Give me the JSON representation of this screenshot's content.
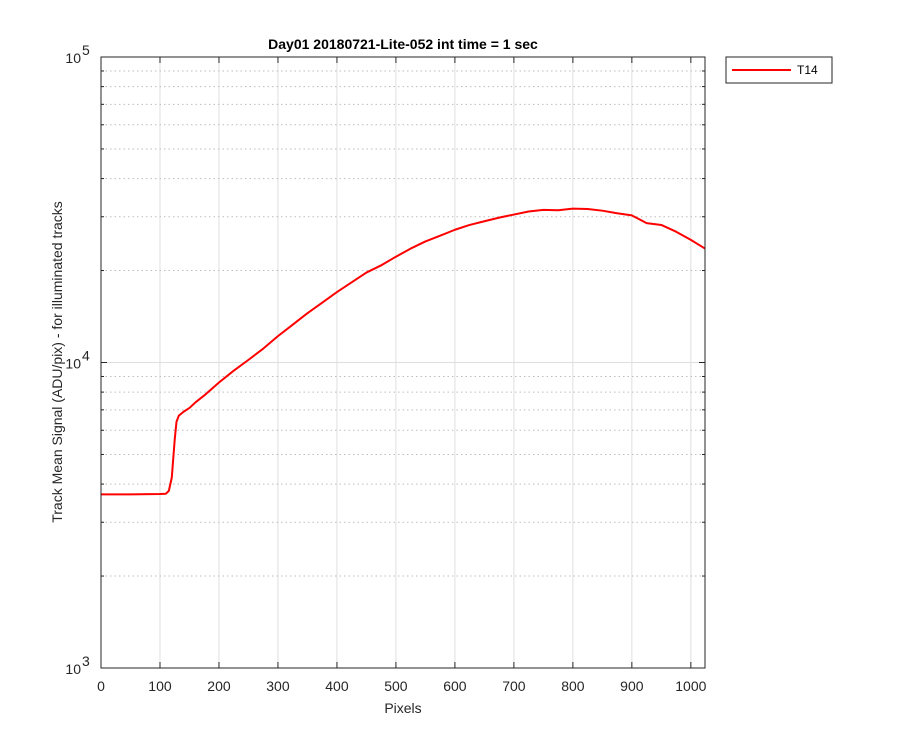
{
  "chart_data": {
    "type": "line",
    "title": "Day01 20180721-Lite-052 int time = 1 sec",
    "xlabel": "Pixels",
    "ylabel": "Track Mean Signal (ADU/pix) - for illuminated tracks",
    "xlim": [
      0,
      1024
    ],
    "ylim": [
      1000,
      100000
    ],
    "yscale": "log",
    "grid": true,
    "minor_grid": true,
    "legend_position": "outside-top-right",
    "x_ticks": [
      0,
      100,
      200,
      300,
      400,
      500,
      600,
      700,
      800,
      900,
      1000
    ],
    "x_tick_labels": [
      "0",
      "100",
      "200",
      "300",
      "400",
      "500",
      "600",
      "700",
      "800",
      "900",
      "1000"
    ],
    "y_ticks": [
      1000,
      10000,
      100000
    ],
    "y_tick_labels": [
      {
        "base": "10",
        "exp": "3"
      },
      {
        "base": "10",
        "exp": "4"
      },
      {
        "base": "10",
        "exp": "5"
      }
    ],
    "series": [
      {
        "name": "T14",
        "color": "#ff0000",
        "x": [
          0,
          50,
          100,
          110,
          115,
          120,
          125,
          128,
          132,
          140,
          150,
          160,
          175,
          200,
          225,
          250,
          275,
          300,
          325,
          350,
          375,
          400,
          425,
          450,
          475,
          500,
          525,
          550,
          575,
          600,
          625,
          650,
          675,
          700,
          725,
          750,
          775,
          800,
          825,
          850,
          875,
          900,
          925,
          950,
          975,
          1000,
          1024
        ],
        "y": [
          3700,
          3700,
          3710,
          3720,
          3800,
          4200,
          5600,
          6400,
          6700,
          6900,
          7100,
          7400,
          7800,
          8600,
          9400,
          10200,
          11100,
          12200,
          13300,
          14500,
          15700,
          17000,
          18300,
          19700,
          20800,
          22200,
          23600,
          24900,
          26000,
          27200,
          28200,
          29000,
          29800,
          30500,
          31200,
          31600,
          31500,
          31900,
          31800,
          31400,
          30800,
          30300,
          28600,
          28200,
          26800,
          25200,
          23600
        ]
      }
    ]
  }
}
